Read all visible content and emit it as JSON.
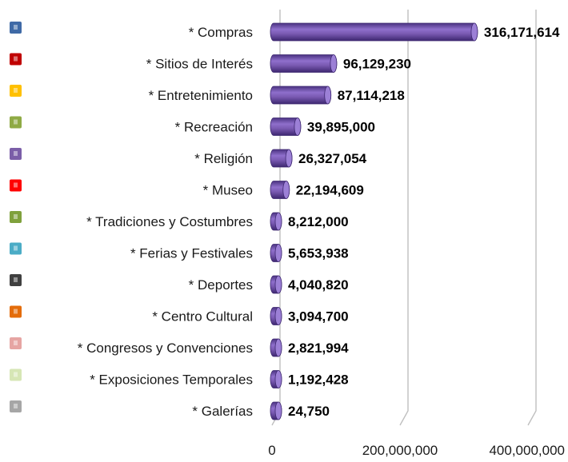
{
  "chart_data": {
    "type": "bar",
    "orientation": "horizontal",
    "style": "3d-cylinder",
    "categories": [
      "* Compras",
      "* Sitios de Interés",
      "* Entretenimiento",
      "* Recreación",
      "* Religión",
      "* Museo",
      "* Tradiciones y Costumbres",
      "* Ferias y Festivales",
      "* Deportes",
      "* Centro Cultural",
      "* Congresos y Convenciones",
      "* Exposiciones Temporales",
      "* Galerías"
    ],
    "values": [
      316171614,
      96129230,
      87114218,
      39895000,
      26327054,
      22194609,
      8212000,
      5653938,
      4040820,
      3094700,
      2821994,
      1192428,
      24750
    ],
    "value_labels": [
      "316,171,614",
      "96,129,230",
      "87,114,218",
      "39,895,000",
      "26,327,054",
      "22,194,609",
      "8,212,000",
      "5,653,938",
      "4,040,820",
      "3,094,700",
      "2,821,994",
      "1,192,428",
      "24,750"
    ],
    "xlim": [
      0,
      400000000
    ],
    "x_ticks": [
      0,
      200000000,
      400000000
    ],
    "x_tick_labels": [
      "0",
      "200,000,000",
      "400,000,000"
    ],
    "grid": true,
    "legend_position": "left",
    "legend_swatch_colors": [
      "#3f6aa6",
      "#c00000",
      "#ffc000",
      "#8faa45",
      "#7b5ea8",
      "#ff0000",
      "#7fa13c",
      "#4bacc6",
      "#404040",
      "#e46c0a",
      "#e6a5a3",
      "#d6e6b5",
      "#a6a6a6"
    ],
    "bar_color": "#7a5ab2"
  }
}
